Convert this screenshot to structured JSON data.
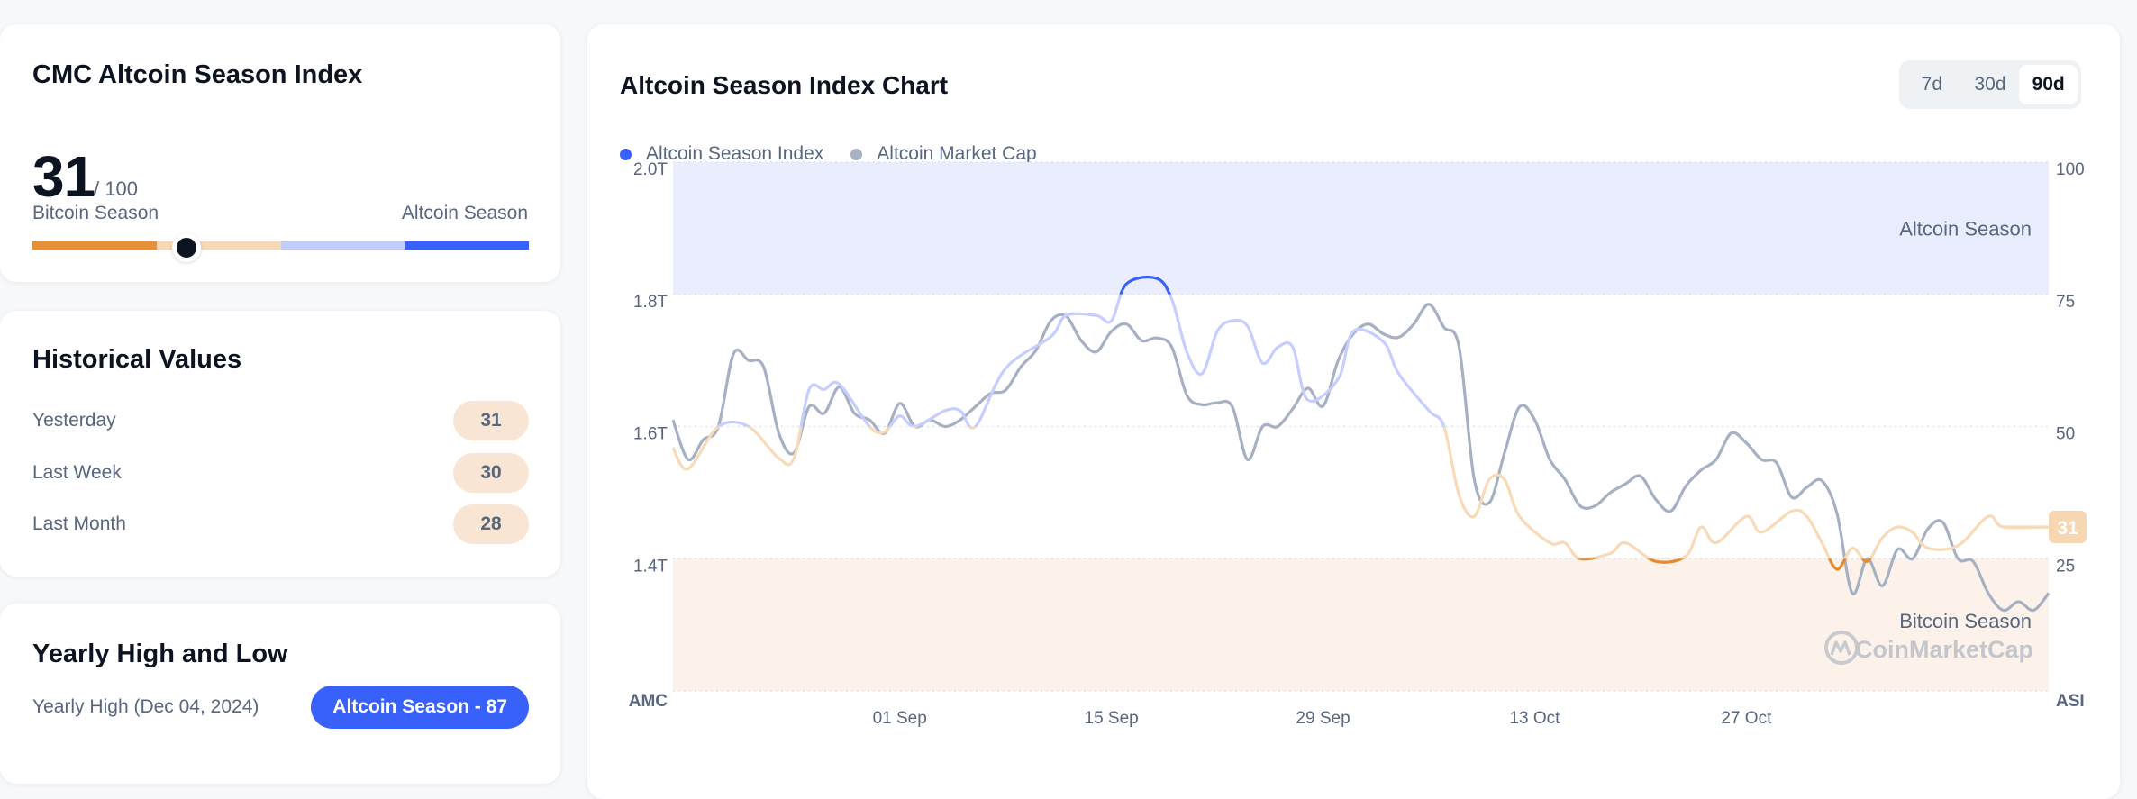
{
  "index_card": {
    "title": "CMC Altcoin Season Index",
    "value": "31",
    "max": "/ 100",
    "left_label": "Bitcoin Season",
    "right_label": "Altcoin Season",
    "value_percent": 31,
    "bar_colors": [
      "#e88f3a",
      "#f5d9b8",
      "#c3cdfa",
      "#3861fb"
    ]
  },
  "historical": {
    "title": "Historical Values",
    "rows": [
      {
        "label": "Yesterday",
        "value": "31"
      },
      {
        "label": "Last Week",
        "value": "30"
      },
      {
        "label": "Last Month",
        "value": "28"
      }
    ]
  },
  "yearly": {
    "title": "Yearly High and Low",
    "high_label": "Yearly High (Dec 04, 2024)",
    "high_value": "Altcoin Season - 87"
  },
  "chart_header": {
    "title": "Altcoin Season Index Chart",
    "ranges": [
      {
        "label": "7d",
        "active": false
      },
      {
        "label": "30d",
        "active": false
      },
      {
        "label": "90d",
        "active": true
      }
    ]
  },
  "chart_data": {
    "type": "line",
    "title": "Altcoin Season Index Chart",
    "legend": [
      "Altcoin Season Index",
      "Altcoin Market Cap"
    ],
    "legend_placement": "top-left",
    "colors": {
      "asi_dot": "#3861fb",
      "mcap": "#a6b0c3",
      "altcoin_zone": "#eaedfd",
      "bitcoin_zone": "#fdf2ea",
      "asi_high": "#3861fb",
      "asi_midhigh": "#c5cefc",
      "asi_midlow": "#f8dab8",
      "asi_low": "#e8892f"
    },
    "left_axis": {
      "label": "AMC",
      "ticks": [
        "2.0T",
        "1.8T",
        "1.6T",
        "1.4T"
      ],
      "range": [
        1.2,
        2.0
      ],
      "unit": "T"
    },
    "right_axis": {
      "label": "ASI",
      "ticks": [
        "100",
        "75",
        "50",
        "25"
      ],
      "range": [
        0,
        100
      ]
    },
    "x_ticks": [
      {
        "date": "09-01",
        "label": "01 Sep"
      },
      {
        "date": "09-15",
        "label": "15 Sep"
      },
      {
        "date": "09-29",
        "label": "29 Sep"
      },
      {
        "date": "10-13",
        "label": "13 Oct"
      },
      {
        "date": "10-27",
        "label": "27 Oct"
      }
    ],
    "x_range": [
      "08-17",
      "11-16"
    ],
    "zones": [
      {
        "label": "Altcoin Season",
        "from": 75,
        "to": 100
      },
      {
        "label": "Bitcoin Season",
        "from": 0,
        "to": 25
      }
    ],
    "current_value_label": "31",
    "grid": true,
    "watermark": "CoinMarketCap",
    "series": [
      {
        "name": "Altcoin Season Index",
        "axis": "right",
        "points": [
          [
            "08-17",
            46
          ],
          [
            "08-18",
            42
          ],
          [
            "08-20",
            50
          ],
          [
            "08-22",
            50
          ],
          [
            "08-24",
            44
          ],
          [
            "08-25",
            44
          ],
          [
            "08-26",
            57
          ],
          [
            "08-27",
            57
          ],
          [
            "08-28",
            58
          ],
          [
            "08-30",
            50
          ],
          [
            "08-31",
            49
          ],
          [
            "09-01",
            52
          ],
          [
            "09-02",
            50
          ],
          [
            "09-04",
            53
          ],
          [
            "09-05",
            53
          ],
          [
            "09-06",
            50
          ],
          [
            "09-08",
            61
          ],
          [
            "09-11",
            67
          ],
          [
            "09-12",
            71
          ],
          [
            "09-14",
            71
          ],
          [
            "09-15",
            70
          ],
          [
            "09-16",
            77
          ],
          [
            "09-18",
            78
          ],
          [
            "09-19",
            74
          ],
          [
            "09-20",
            64
          ],
          [
            "09-21",
            60
          ],
          [
            "09-22",
            68
          ],
          [
            "09-23",
            70
          ],
          [
            "09-24",
            69
          ],
          [
            "09-25",
            62
          ],
          [
            "09-26",
            65
          ],
          [
            "09-27",
            65
          ],
          [
            "09-28",
            55
          ],
          [
            "09-30",
            59
          ],
          [
            "10-01",
            68
          ],
          [
            "10-03",
            66
          ],
          [
            "10-04",
            60
          ],
          [
            "10-06",
            53
          ],
          [
            "10-07",
            50
          ],
          [
            "10-08",
            37
          ],
          [
            "10-09",
            33
          ],
          [
            "10-10",
            40
          ],
          [
            "10-11",
            40
          ],
          [
            "10-12",
            33
          ],
          [
            "10-14",
            28
          ],
          [
            "10-15",
            28
          ],
          [
            "10-16",
            25
          ],
          [
            "10-18",
            26
          ],
          [
            "10-19",
            28
          ],
          [
            "10-21",
            24.5
          ],
          [
            "10-23",
            25.5
          ],
          [
            "10-24",
            31
          ],
          [
            "10-25",
            28
          ],
          [
            "10-27",
            33
          ],
          [
            "10-28",
            30
          ],
          [
            "10-30",
            34
          ],
          [
            "10-31",
            33
          ],
          [
            "11-01",
            28
          ],
          [
            "11-02",
            23
          ],
          [
            "11-03",
            27
          ],
          [
            "11-04",
            24.5
          ],
          [
            "11-05",
            29
          ],
          [
            "11-06",
            31
          ],
          [
            "11-07",
            30
          ],
          [
            "11-08",
            27
          ],
          [
            "11-10",
            27.5
          ],
          [
            "11-12",
            33
          ],
          [
            "11-13",
            31
          ],
          [
            "11-16",
            31
          ]
        ]
      },
      {
        "name": "Altcoin Market Cap",
        "axis": "left",
        "points": [
          [
            "08-17",
            1.61
          ],
          [
            "08-18",
            1.55
          ],
          [
            "08-19",
            1.58
          ],
          [
            "08-20",
            1.6
          ],
          [
            "08-21",
            1.71
          ],
          [
            "08-22",
            1.7
          ],
          [
            "08-23",
            1.69
          ],
          [
            "08-24",
            1.59
          ],
          [
            "08-25",
            1.56
          ],
          [
            "08-26",
            1.63
          ],
          [
            "08-27",
            1.62
          ],
          [
            "08-28",
            1.66
          ],
          [
            "08-29",
            1.62
          ],
          [
            "08-30",
            1.61
          ],
          [
            "08-31",
            1.59
          ],
          [
            "09-01",
            1.635
          ],
          [
            "09-02",
            1.6
          ],
          [
            "09-03",
            1.61
          ],
          [
            "09-04",
            1.6
          ],
          [
            "09-05",
            1.61
          ],
          [
            "09-06",
            1.63
          ],
          [
            "09-07",
            1.65
          ],
          [
            "09-08",
            1.655
          ],
          [
            "09-09",
            1.69
          ],
          [
            "09-10",
            1.715
          ],
          [
            "09-11",
            1.76
          ],
          [
            "09-12",
            1.767
          ],
          [
            "09-13",
            1.73
          ],
          [
            "09-14",
            1.713
          ],
          [
            "09-15",
            1.744
          ],
          [
            "09-16",
            1.755
          ],
          [
            "09-17",
            1.73
          ],
          [
            "09-18",
            1.734
          ],
          [
            "09-19",
            1.72
          ],
          [
            "09-20",
            1.647
          ],
          [
            "09-21",
            1.633
          ],
          [
            "09-22",
            1.636
          ],
          [
            "09-23",
            1.63
          ],
          [
            "09-24",
            1.55
          ],
          [
            "09-25",
            1.6
          ],
          [
            "09-26",
            1.6
          ],
          [
            "09-27",
            1.627
          ],
          [
            "09-28",
            1.658
          ],
          [
            "09-29",
            1.631
          ],
          [
            "09-30",
            1.7
          ],
          [
            "10-01",
            1.74
          ],
          [
            "10-02",
            1.755
          ],
          [
            "10-03",
            1.74
          ],
          [
            "10-04",
            1.735
          ],
          [
            "10-05",
            1.755
          ],
          [
            "10-06",
            1.785
          ],
          [
            "10-07",
            1.75
          ],
          [
            "10-08",
            1.72
          ],
          [
            "10-09",
            1.52
          ],
          [
            "10-10",
            1.485
          ],
          [
            "10-11",
            1.56
          ],
          [
            "10-12",
            1.63
          ],
          [
            "10-13",
            1.61
          ],
          [
            "10-14",
            1.55
          ],
          [
            "10-15",
            1.52
          ],
          [
            "10-16",
            1.48
          ],
          [
            "10-17",
            1.48
          ],
          [
            "10-18",
            1.5
          ],
          [
            "10-19",
            1.513
          ],
          [
            "10-20",
            1.525
          ],
          [
            "10-21",
            1.49
          ],
          [
            "10-22",
            1.472
          ],
          [
            "10-23",
            1.51
          ],
          [
            "10-24",
            1.534
          ],
          [
            "10-25",
            1.55
          ],
          [
            "10-26",
            1.59
          ],
          [
            "10-27",
            1.575
          ],
          [
            "10-28",
            1.55
          ],
          [
            "10-29",
            1.545
          ],
          [
            "10-30",
            1.493
          ],
          [
            "10-31",
            1.508
          ],
          [
            "11-01",
            1.518
          ],
          [
            "11-02",
            1.468
          ],
          [
            "11-03",
            1.348
          ],
          [
            "11-04",
            1.4
          ],
          [
            "11-05",
            1.359
          ],
          [
            "11-06",
            1.414
          ],
          [
            "11-07",
            1.4
          ],
          [
            "11-08",
            1.445
          ],
          [
            "11-09",
            1.455
          ],
          [
            "11-10",
            1.4
          ],
          [
            "11-11",
            1.396
          ],
          [
            "11-12",
            1.348
          ],
          [
            "11-13",
            1.322
          ],
          [
            "11-14",
            1.335
          ],
          [
            "11-15",
            1.322
          ],
          [
            "11-16",
            1.348
          ]
        ]
      }
    ]
  }
}
